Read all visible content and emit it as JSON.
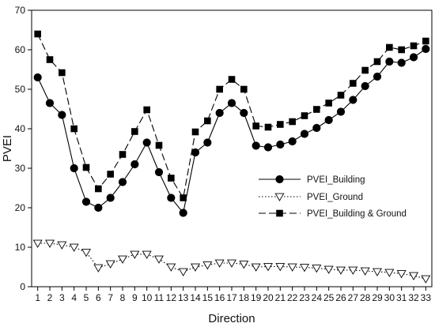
{
  "chart_data": {
    "type": "line",
    "xlabel": "Direction",
    "ylabel": "PVEI",
    "xlim": [
      0.5,
      33.5
    ],
    "ylim": [
      0,
      70
    ],
    "yticks": [
      0,
      10,
      20,
      30,
      40,
      50,
      60,
      70
    ],
    "x": [
      1,
      2,
      3,
      4,
      5,
      6,
      7,
      8,
      9,
      10,
      11,
      12,
      13,
      14,
      15,
      16,
      17,
      18,
      19,
      20,
      21,
      22,
      23,
      24,
      25,
      26,
      27,
      28,
      29,
      30,
      31,
      32,
      33
    ],
    "x_tick_labels": [
      "1",
      "2",
      "3",
      "4",
      "5",
      "6",
      "7",
      "8",
      "9",
      "10",
      "11",
      "12",
      "13",
      "14",
      "15",
      "16",
      "17",
      "18",
      "19",
      "20",
      "21",
      "22",
      "23",
      "24",
      "25",
      "26",
      "27",
      "28",
      "29",
      "30",
      "31",
      "32",
      "33"
    ],
    "grid": false,
    "legend_position": "right",
    "series": [
      {
        "name": "PVEI_Building",
        "marker": "circle",
        "line_style": "solid",
        "color": "#000000",
        "values": [
          53,
          46.5,
          43.5,
          30,
          21.5,
          20,
          22.5,
          26.5,
          31,
          36.5,
          29,
          22.5,
          18.7,
          34,
          36.5,
          44,
          46.5,
          44,
          35.7,
          35.3,
          36,
          36.8,
          38.7,
          40.2,
          42.2,
          44.3,
          47.3,
          50.8,
          53.2,
          57,
          56.7,
          58.1,
          60.2
        ]
      },
      {
        "name": "PVEI_Ground",
        "marker": "triangle-down",
        "line_style": "dotted",
        "color": "#000000",
        "values": [
          11,
          11,
          10.6,
          10,
          8.7,
          4.8,
          5.8,
          7,
          8.2,
          8.2,
          7,
          5,
          3.8,
          5,
          5.5,
          6,
          6,
          5.7,
          5,
          5.1,
          5.1,
          5,
          4.9,
          4.7,
          4.4,
          4.2,
          4.2,
          4,
          3.8,
          3.6,
          3.3,
          2.8,
          2
        ]
      },
      {
        "name": "PVEI_Building & Ground",
        "marker": "square",
        "line_style": "dashed",
        "color": "#000000",
        "values": [
          64,
          57.5,
          54.2,
          40,
          30.2,
          24.8,
          28.5,
          33.5,
          39.3,
          44.8,
          35.8,
          27.5,
          22.5,
          39.2,
          42,
          50,
          52.5,
          50,
          40.7,
          40.4,
          41.1,
          41.8,
          43.3,
          44.9,
          46.5,
          48.5,
          51.5,
          54.8,
          57,
          60.6,
          60,
          61,
          62.2
        ]
      }
    ]
  }
}
